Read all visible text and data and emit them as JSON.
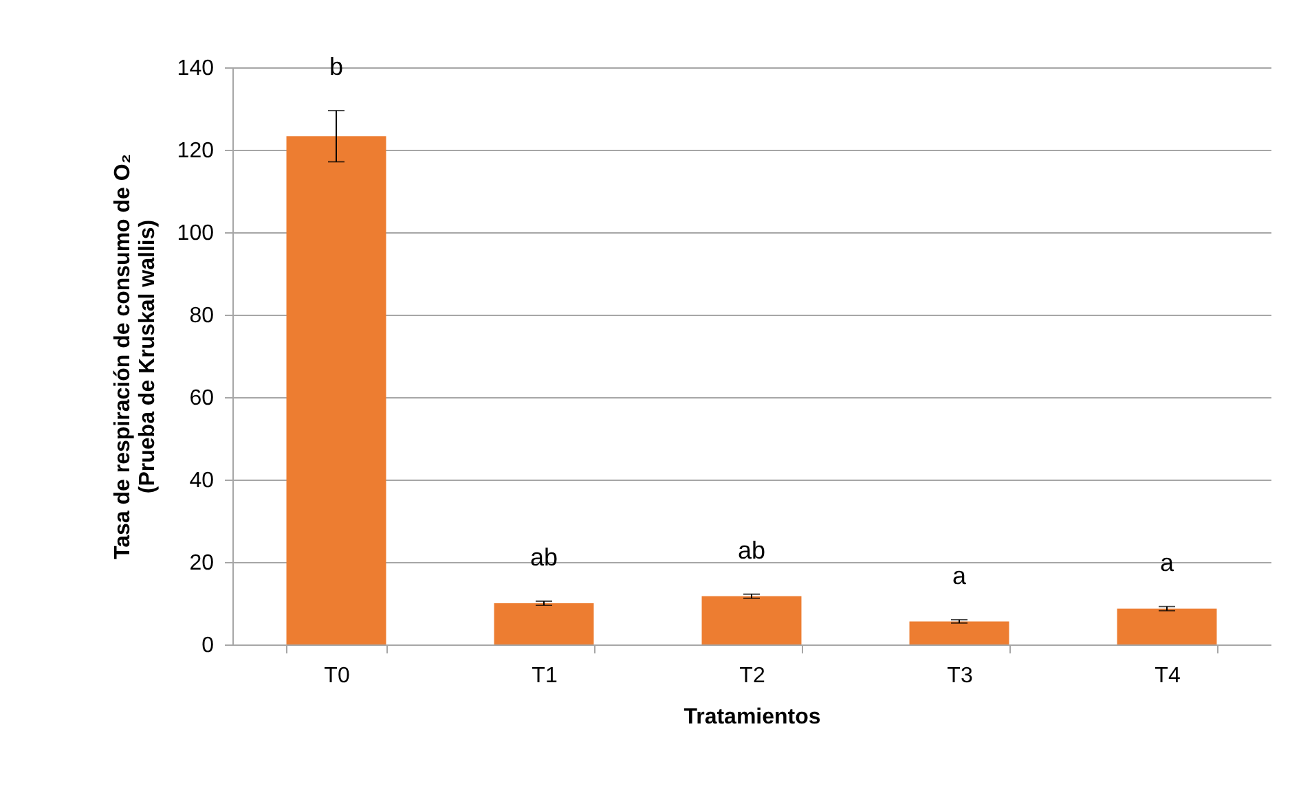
{
  "chart_data": {
    "type": "bar",
    "categories": [
      "T0",
      "T1",
      "T2",
      "T3",
      "T4"
    ],
    "values": [
      123.3,
      10.0,
      11.7,
      5.6,
      8.7
    ],
    "errors": [
      6.2,
      0.5,
      0.5,
      0.4,
      0.5
    ],
    "color": "#ed7d31",
    "xlabel": "Tratamientos",
    "ylabel": "Tasa de respiración de consumo de O₂\n(Prueba de Kruskal wallis)",
    "ylim": [
      0,
      140
    ],
    "yticks": [
      0,
      20,
      40,
      60,
      80,
      100,
      120,
      140
    ],
    "grid": "y",
    "annotations": [
      "b",
      "ab",
      "ab",
      "a",
      "a"
    ]
  }
}
